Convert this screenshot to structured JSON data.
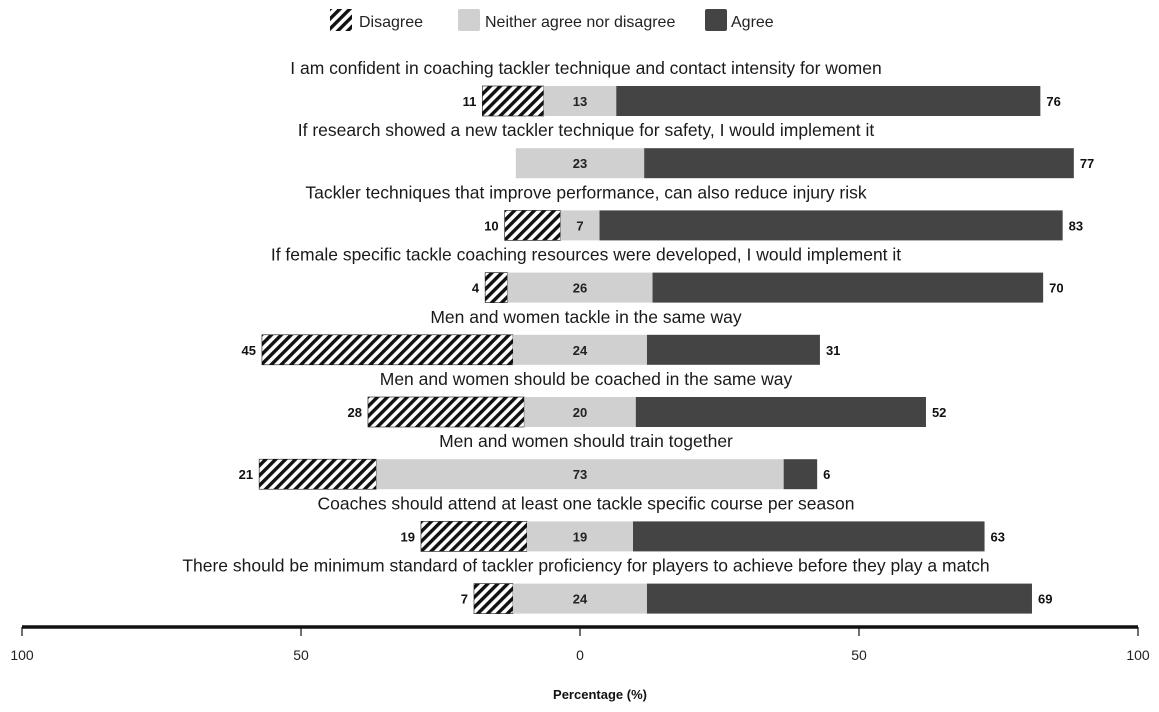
{
  "chart_data": {
    "type": "bar",
    "orientation": "horizontal",
    "stacked": "diverging",
    "xlabel": "Percentage  (%)",
    "x_ticks": [
      "100",
      "50",
      "0",
      "50",
      "100"
    ],
    "xlim": [
      -100,
      100
    ],
    "grid": false,
    "legend_position": "top-center",
    "series": [
      {
        "name": "Disagree",
        "pattern": "diagonal-hatch",
        "color": "#111111"
      },
      {
        "name": "Neither agree nor disagree",
        "color": "#d0d0d0"
      },
      {
        "name": "Agree",
        "color": "#444444"
      }
    ],
    "categories": [
      "I am confident in coaching tackler technique and contact intensity for women",
      "If research showed a new tackler technique for safety, I would implement it",
      "Tackler techniques that improve performance, can also reduce injury risk",
      "If female specific tackle coaching resources were developed, I would implement it",
      "Men and women tackle in the same way",
      "Men and women should be coached in the same way",
      "Men and women should train together",
      "Coaches should attend at least one tackle specific course per season",
      "There should be minimum standard of tackler proficiency for players to achieve before they play a match"
    ],
    "rows": [
      {
        "disagree": 11,
        "neutral": 13,
        "agree": 76
      },
      {
        "disagree": null,
        "neutral": 23,
        "agree": 77
      },
      {
        "disagree": 10,
        "neutral": 7,
        "agree": 83
      },
      {
        "disagree": 4,
        "neutral": 26,
        "agree": 70
      },
      {
        "disagree": 45,
        "neutral": 24,
        "agree": 31
      },
      {
        "disagree": 28,
        "neutral": 20,
        "agree": 52
      },
      {
        "disagree": 21,
        "neutral": 73,
        "agree": 6
      },
      {
        "disagree": 19,
        "neutral": 19,
        "agree": 63
      },
      {
        "disagree": 7,
        "neutral": 24,
        "agree": 69
      }
    ]
  }
}
